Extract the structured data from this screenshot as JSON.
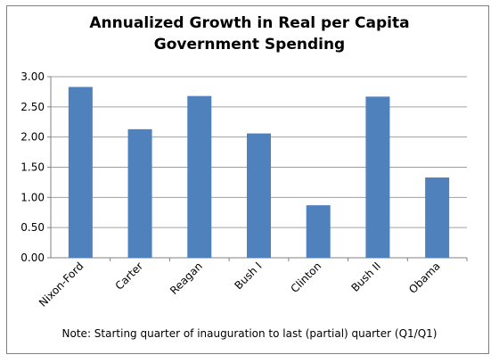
{
  "chart_data": {
    "type": "bar",
    "title_lines": [
      "Annualized Growth in Real per Capita",
      "Government Spending"
    ],
    "categories": [
      "Nixon-Ford",
      "Carter",
      "Reagan",
      "Bush I",
      "Clinton",
      "Bush II",
      "Obama"
    ],
    "values": [
      2.83,
      2.13,
      2.68,
      2.06,
      0.87,
      2.67,
      1.33
    ],
    "ylim": [
      0,
      3
    ],
    "yticks": [
      "0.00",
      "0.50",
      "1.00",
      "1.50",
      "2.00",
      "2.50",
      "3.00"
    ],
    "xlabel": "",
    "ylabel": "",
    "grid": true,
    "bar_color": "#4f81bd",
    "note": "Note: Starting quarter of inauguration to last (partial) quarter (Q1/Q1)"
  }
}
